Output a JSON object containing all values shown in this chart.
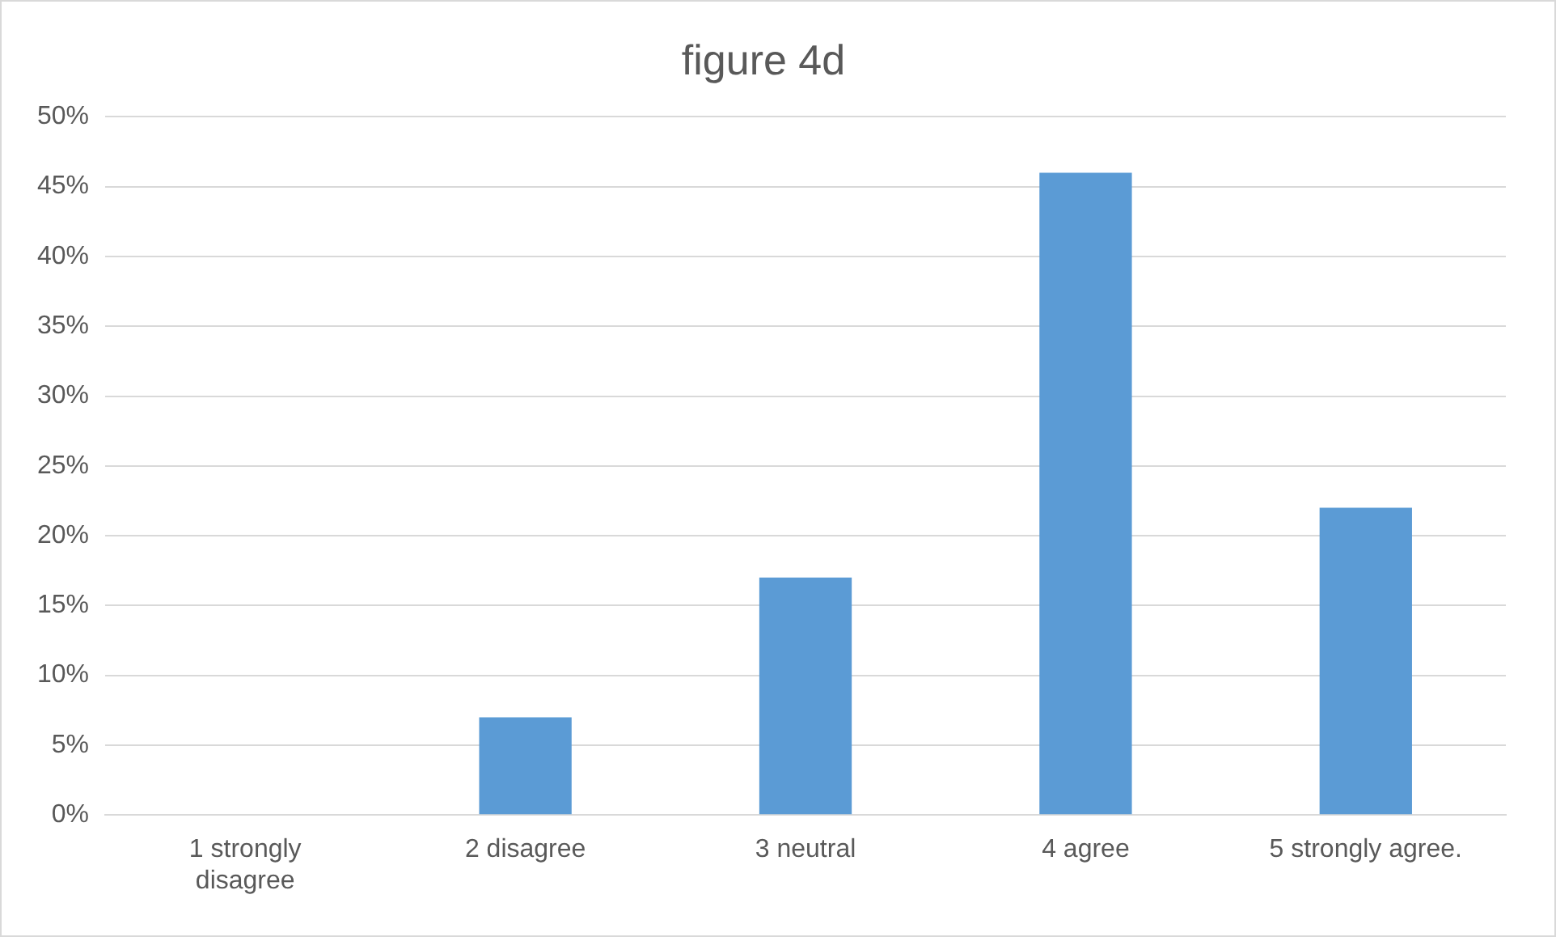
{
  "chart_data": {
    "type": "bar",
    "title": "figure 4d",
    "categories": [
      "1 strongly disagree",
      "2 disagree",
      "3 neutral",
      "4 agree",
      "5 strongly agree."
    ],
    "values": [
      0,
      7,
      17,
      46,
      22
    ],
    "color": "#5b9bd5",
    "ylim": [
      0,
      50
    ],
    "yticks": [
      {
        "value": 0,
        "label": "0%"
      },
      {
        "value": 5,
        "label": "5%"
      },
      {
        "value": 10,
        "label": "10%"
      },
      {
        "value": 15,
        "label": "15%"
      },
      {
        "value": 20,
        "label": "20%"
      },
      {
        "value": 25,
        "label": "25%"
      },
      {
        "value": 30,
        "label": "30%"
      },
      {
        "value": 35,
        "label": "35%"
      },
      {
        "value": 40,
        "label": "40%"
      },
      {
        "value": 45,
        "label": "45%"
      },
      {
        "value": 50,
        "label": "50%"
      }
    ],
    "grid": "y",
    "legend": false
  }
}
